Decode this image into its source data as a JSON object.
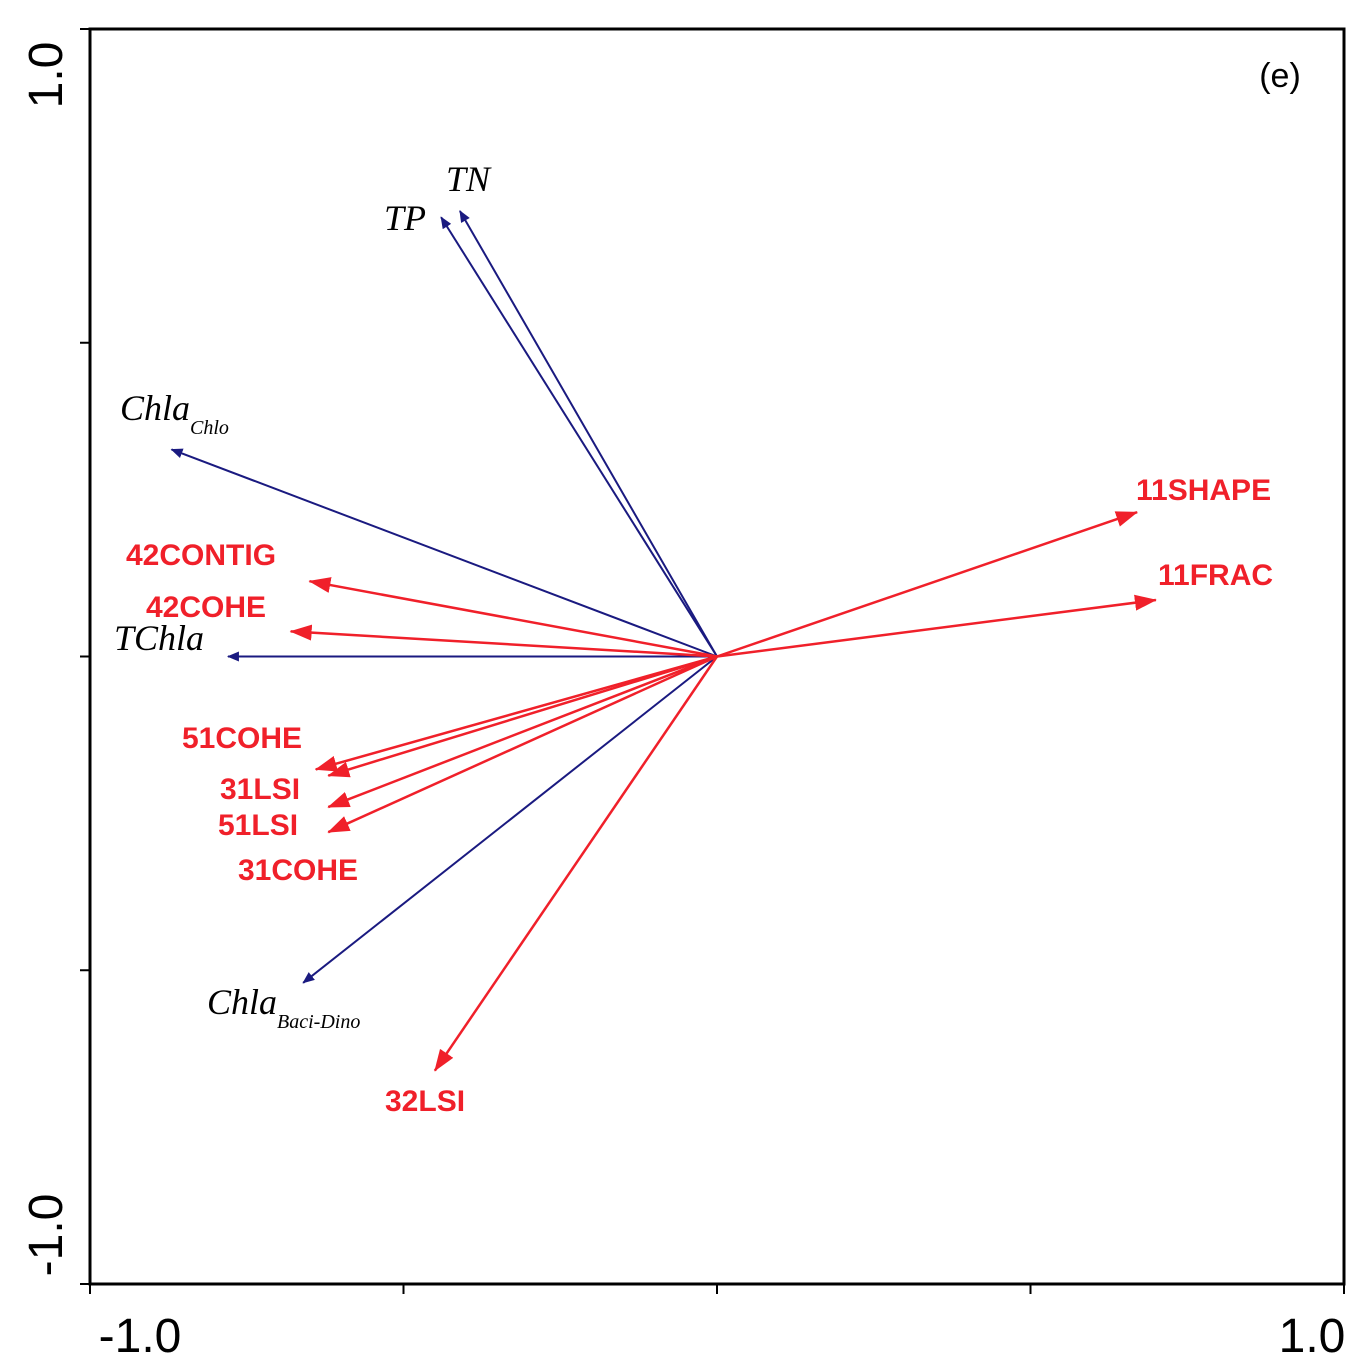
{
  "chart_data": {
    "type": "biplot",
    "panel_label": "(e)",
    "xlim": [
      -1.0,
      1.0
    ],
    "ylim": [
      -1.0,
      1.0
    ],
    "x_tick_labels": {
      "min": "-1.0",
      "max": "1.0"
    },
    "y_tick_labels": {
      "min": "-1.0",
      "max": "1.0"
    },
    "grid": false,
    "colors": {
      "response": "#1a1a80",
      "explanatory": "#f0202a",
      "axis": "#000000"
    },
    "series": [
      {
        "name": "response",
        "arrows": [
          {
            "id": "tn",
            "label": "TN",
            "sub": "",
            "x": -0.41,
            "y": 0.71
          },
          {
            "id": "tp",
            "label": "TP",
            "sub": "",
            "x": -0.44,
            "y": 0.7
          },
          {
            "id": "chla-chlo",
            "label": "Chla",
            "sub": "Chlo",
            "x": -0.87,
            "y": 0.33
          },
          {
            "id": "tchla",
            "label": "TChla",
            "sub": "",
            "x": -0.78,
            "y": 0.0
          },
          {
            "id": "chla-baci-dino",
            "label": "Chla",
            "sub": "Baci-Dino",
            "x": -0.66,
            "y": -0.52
          }
        ]
      },
      {
        "name": "explanatory",
        "arrows": [
          {
            "id": "11shape",
            "label": "11SHAPE",
            "x": 0.67,
            "y": 0.23
          },
          {
            "id": "11frac",
            "label": "11FRAC",
            "x": 0.7,
            "y": 0.09
          },
          {
            "id": "42contig",
            "label": "42CONTIG",
            "x": -0.65,
            "y": 0.12
          },
          {
            "id": "42cohe",
            "label": "42COHE",
            "x": -0.68,
            "y": 0.04
          },
          {
            "id": "51cohe",
            "label": "51COHE",
            "x": -0.64,
            "y": -0.18
          },
          {
            "id": "31lsi",
            "label": "31LSI",
            "x": -0.62,
            "y": -0.19
          },
          {
            "id": "51lsi",
            "label": "51LSI",
            "x": -0.62,
            "y": -0.24
          },
          {
            "id": "31cohe",
            "label": "31COHE",
            "x": -0.62,
            "y": -0.28
          },
          {
            "id": "32lsi",
            "label": "32LSI",
            "x": -0.45,
            "y": -0.66
          }
        ]
      }
    ]
  }
}
